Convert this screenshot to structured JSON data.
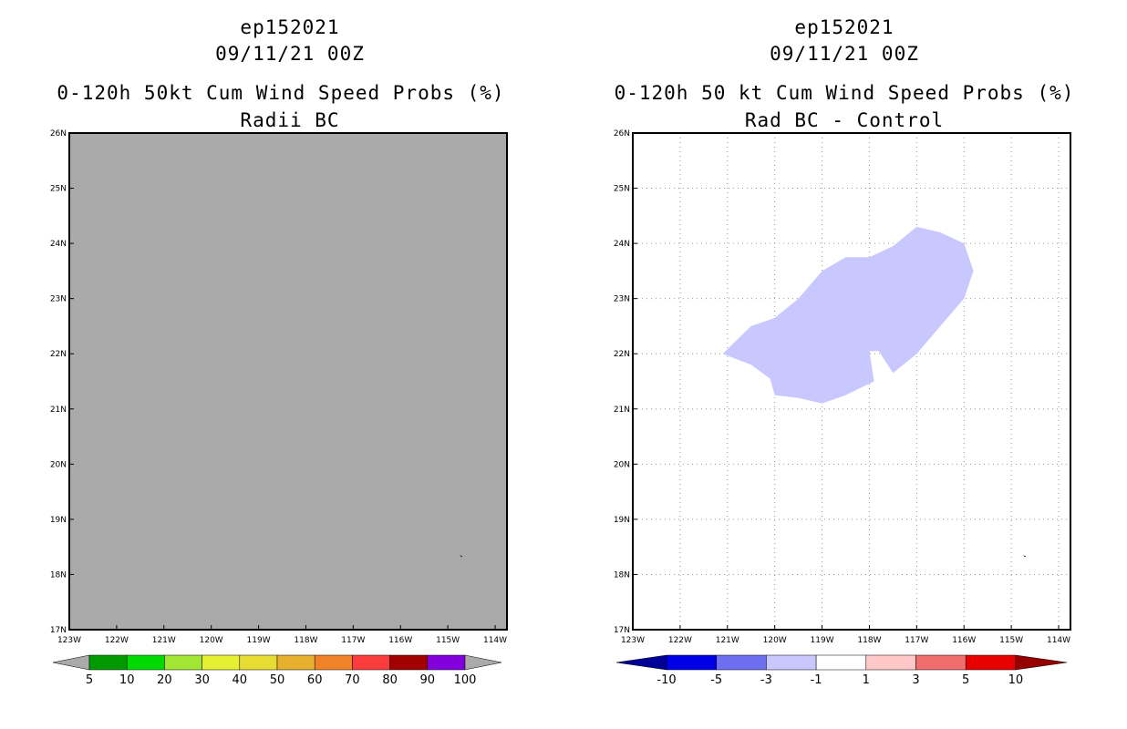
{
  "left": {
    "storm_id": "ep152021",
    "datetime": "09/11/21 00Z",
    "product": "0-120h 50kt Cum Wind Speed Probs (%)",
    "subtitle": "Radii BC",
    "fill_color": "#aaaaaa",
    "colorbar": {
      "colors": [
        "#009a00",
        "#00da00",
        "#a0e632",
        "#e6f032",
        "#e6dc32",
        "#e6af2d",
        "#f08228",
        "#fa3c3c",
        "#a00000",
        "#8200dc"
      ],
      "end_color": "#aaaaaa",
      "labels": [
        "5",
        "10",
        "20",
        "30",
        "40",
        "50",
        "60",
        "70",
        "80",
        "90",
        "100"
      ]
    }
  },
  "right": {
    "storm_id": "ep152021",
    "datetime": "09/11/21 00Z",
    "product": "0-120h 50 kt Cum Wind Speed Probs (%)",
    "subtitle": "Rad BC - Control",
    "fill_color": "#ffffff",
    "anomaly_color": "#c8c8ff",
    "colorbar": {
      "colors": [
        "#0000e6",
        "#6e6ef0",
        "#c8c8ff",
        "#ffffff",
        "#ffc8c8",
        "#f06e6e",
        "#e60000"
      ],
      "left_end": "#000096",
      "right_end": "#960000",
      "labels": [
        "-10",
        "-5",
        "-3",
        "-1",
        "1",
        "3",
        "5",
        "10"
      ]
    },
    "anomaly_polygon": [
      [
        -121.1,
        22.0
      ],
      [
        -120.5,
        22.5
      ],
      [
        -120.0,
        22.65
      ],
      [
        -119.5,
        23.0
      ],
      [
        -119.0,
        23.5
      ],
      [
        -118.5,
        23.75
      ],
      [
        -118.0,
        23.75
      ],
      [
        -117.5,
        23.95
      ],
      [
        -117.0,
        24.3
      ],
      [
        -116.5,
        24.2
      ],
      [
        -116.0,
        24.0
      ],
      [
        -115.8,
        23.5
      ],
      [
        -116.0,
        23.0
      ],
      [
        -116.5,
        22.5
      ],
      [
        -117.0,
        22.0
      ],
      [
        -117.5,
        21.65
      ],
      [
        -117.8,
        22.05
      ],
      [
        -118.0,
        22.05
      ],
      [
        -117.9,
        21.5
      ],
      [
        -118.5,
        21.25
      ],
      [
        -119.0,
        21.1
      ],
      [
        -119.5,
        21.2
      ],
      [
        -120.0,
        21.25
      ],
      [
        -120.1,
        21.55
      ],
      [
        -120.5,
        21.8
      ]
    ]
  },
  "map": {
    "lon_range": [
      -123,
      -113.75
    ],
    "lat_range": [
      17,
      26
    ],
    "lon_ticks": [
      -123,
      -122,
      -121,
      -120,
      -119,
      -118,
      -117,
      -116,
      -115,
      -114
    ],
    "lon_labels": [
      "123W",
      "122W",
      "121W",
      "120W",
      "119W",
      "118W",
      "117W",
      "116W",
      "115W",
      "114W"
    ],
    "lat_ticks": [
      17,
      18,
      19,
      20,
      21,
      22,
      23,
      24,
      25,
      26
    ],
    "lat_labels": [
      "17N",
      "18N",
      "19N",
      "20N",
      "21N",
      "22N",
      "23N",
      "24N",
      "25N",
      "26N"
    ],
    "islet": [
      -114.75,
      18.35
    ]
  }
}
